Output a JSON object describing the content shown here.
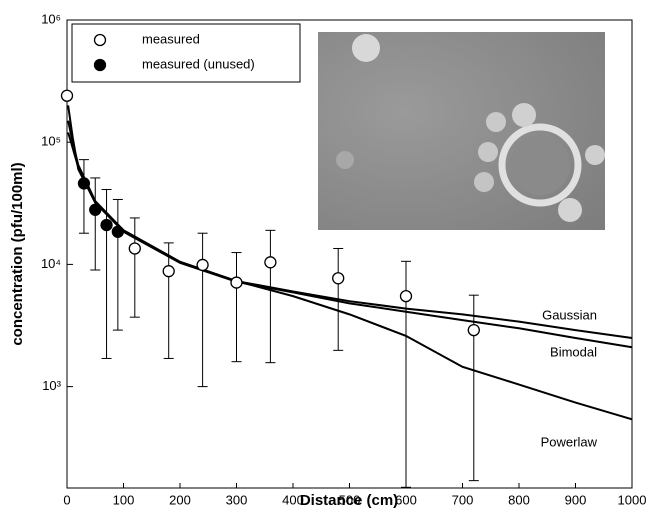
{
  "chart_data": {
    "type": "scatter",
    "x_label": "Distance (cm)",
    "y_label": "concentration (pfu/100ml)",
    "log_y": true,
    "xlim": [
      0,
      1000
    ],
    "xticks": [
      0,
      100,
      200,
      300,
      400,
      500,
      600,
      700,
      800,
      900,
      1000
    ],
    "ylim": [
      148,
      1000000
    ],
    "yticks": [
      {
        "value": 1000,
        "label": "10³"
      },
      {
        "value": 10000,
        "label": "10⁴"
      },
      {
        "value": 100000,
        "label": "10⁵"
      },
      {
        "value": 1000000,
        "label": "10⁶"
      }
    ],
    "series": [
      {
        "name": "measured",
        "marker": "open",
        "color": "#000000",
        "x": [
          0,
          120,
          180,
          240,
          300,
          360,
          480,
          600,
          720
        ],
        "values": [
          240000,
          13500,
          8800,
          9900,
          7100,
          10400,
          7700,
          5500,
          2900
        ],
        "lower": [
          240000,
          3700,
          1700,
          1000,
          1600,
          1570,
          1980,
          150,
          170
        ],
        "upper": [
          240000,
          24000,
          15000,
          18000,
          12500,
          19000,
          13500,
          10600,
          5600
        ]
      },
      {
        "name": "measured (unused)",
        "marker": "filled",
        "color": "#000000",
        "x": [
          30,
          50,
          70,
          90
        ],
        "values": [
          46000,
          28000,
          21000,
          18500
        ],
        "lower": [
          18000,
          9000,
          1700,
          2900
        ],
        "upper": [
          72000,
          51000,
          41000,
          34000
        ]
      }
    ],
    "curves": [
      {
        "name": "Gaussian",
        "color": "#000000",
        "x": [
          2,
          10,
          20,
          50,
          100,
          200,
          300,
          400,
          500,
          600,
          700,
          800,
          900,
          1000
        ],
        "values": [
          150000,
          100000,
          65000,
          33000,
          19000,
          10500,
          7300,
          6000,
          5000,
          4350,
          3900,
          3400,
          2900,
          2500
        ]
      },
      {
        "name": "Bimodal",
        "color": "#000000",
        "x": [
          2,
          10,
          20,
          50,
          100,
          200,
          300,
          400,
          500,
          600,
          700,
          800,
          900,
          1000
        ],
        "values": [
          120000,
          90000,
          62000,
          32000,
          18500,
          10300,
          7200,
          5900,
          4800,
          4100,
          3500,
          3000,
          2500,
          2100
        ]
      },
      {
        "name": "Powerlaw",
        "color": "#000000",
        "x": [
          2,
          10,
          20,
          50,
          100,
          200,
          300,
          400,
          500,
          600,
          700,
          800,
          900,
          1000
        ],
        "values": [
          200000,
          110000,
          60000,
          32000,
          19000,
          10500,
          7300,
          5500,
          3900,
          2600,
          1450,
          1040,
          740,
          540
        ]
      }
    ]
  }
}
